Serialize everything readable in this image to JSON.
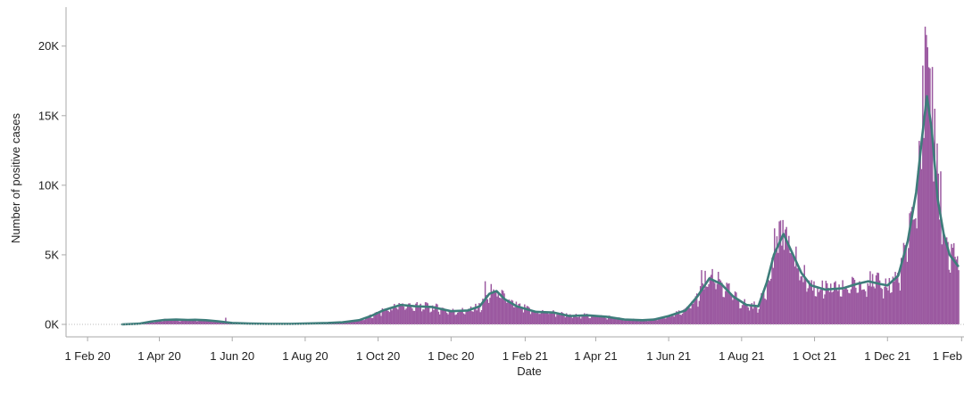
{
  "chart_data": {
    "type": "bar",
    "xlabel": "Date",
    "ylabel": "Number of positive cases",
    "x_range": [
      "2020-01-14",
      "2022-02-03"
    ],
    "ylim": [
      0,
      22800
    ],
    "y_ticks": [
      {
        "value": 0,
        "label": "0K"
      },
      {
        "value": 5000,
        "label": "5K"
      },
      {
        "value": 10000,
        "label": "10K"
      },
      {
        "value": 15000,
        "label": "15K"
      },
      {
        "value": 20000,
        "label": "20K"
      }
    ],
    "x_ticks": [
      {
        "date": "2020-02-01",
        "label": "1 Feb 20"
      },
      {
        "date": "2020-04-01",
        "label": "1 Apr 20"
      },
      {
        "date": "2020-06-01",
        "label": "1 Jun 20"
      },
      {
        "date": "2020-08-01",
        "label": "1 Aug 20"
      },
      {
        "date": "2020-10-01",
        "label": "1 Oct 20"
      },
      {
        "date": "2020-12-01",
        "label": "1 Dec 20"
      },
      {
        "date": "2021-02-01",
        "label": "1 Feb 21"
      },
      {
        "date": "2021-04-01",
        "label": "1 Apr 21"
      },
      {
        "date": "2021-06-01",
        "label": "1 Jun 21"
      },
      {
        "date": "2021-08-01",
        "label": "1 Aug 21"
      },
      {
        "date": "2021-10-01",
        "label": "1 Oct 21"
      },
      {
        "date": "2021-12-01",
        "label": "1 Dec 21"
      },
      {
        "date": "2022-02-01",
        "label": "1 Feb"
      }
    ],
    "grid": false,
    "legend": "none",
    "series": [
      {
        "kind": "daily-bars",
        "color": "#9b59a0",
        "start": "2020-03-01",
        "end": "2022-01-29",
        "points": [
          [
            "2020-03-01",
            0
          ],
          [
            "2020-03-15",
            50
          ],
          [
            "2020-03-25",
            200
          ],
          [
            "2020-04-05",
            320
          ],
          [
            "2020-04-15",
            350
          ],
          [
            "2020-04-25",
            320
          ],
          [
            "2020-05-01",
            330
          ],
          [
            "2020-05-10",
            300
          ],
          [
            "2020-05-20",
            220
          ],
          [
            "2020-06-01",
            100
          ],
          [
            "2020-06-15",
            60
          ],
          [
            "2020-07-01",
            40
          ],
          [
            "2020-07-20",
            40
          ],
          [
            "2020-08-01",
            60
          ],
          [
            "2020-08-20",
            100
          ],
          [
            "2020-09-01",
            150
          ],
          [
            "2020-09-15",
            300
          ],
          [
            "2020-09-25",
            600
          ],
          [
            "2020-10-05",
            1000
          ],
          [
            "2020-10-20",
            1400
          ],
          [
            "2020-11-01",
            1300
          ],
          [
            "2020-11-15",
            1250
          ],
          [
            "2020-12-01",
            950
          ],
          [
            "2020-12-15",
            1000
          ],
          [
            "2020-12-25",
            1300
          ],
          [
            "2021-01-02",
            2200
          ],
          [
            "2021-01-08",
            2400
          ],
          [
            "2021-01-15",
            1800
          ],
          [
            "2021-01-25",
            1300
          ],
          [
            "2021-02-10",
            900
          ],
          [
            "2021-02-25",
            850
          ],
          [
            "2021-03-10",
            600
          ],
          [
            "2021-03-25",
            650
          ],
          [
            "2021-04-10",
            550
          ],
          [
            "2021-04-25",
            350
          ],
          [
            "2021-05-10",
            300
          ],
          [
            "2021-05-20",
            350
          ],
          [
            "2021-06-01",
            600
          ],
          [
            "2021-06-15",
            1000
          ],
          [
            "2021-06-25",
            2000
          ],
          [
            "2021-07-05",
            3300
          ],
          [
            "2021-07-15",
            2900
          ],
          [
            "2021-07-25",
            2000
          ],
          [
            "2021-08-05",
            1400
          ],
          [
            "2021-08-15",
            1300
          ],
          [
            "2021-08-22",
            3000
          ],
          [
            "2021-08-28",
            5000
          ],
          [
            "2021-09-05",
            6500
          ],
          [
            "2021-09-12",
            5200
          ],
          [
            "2021-09-20",
            3700
          ],
          [
            "2021-09-28",
            2800
          ],
          [
            "2021-10-10",
            2500
          ],
          [
            "2021-10-25",
            2600
          ],
          [
            "2021-11-05",
            2900
          ],
          [
            "2021-11-15",
            3100
          ],
          [
            "2021-11-25",
            2900
          ],
          [
            "2021-12-01",
            2800
          ],
          [
            "2021-12-10",
            3500
          ],
          [
            "2021-12-18",
            6000
          ],
          [
            "2021-12-25",
            9500
          ],
          [
            "2021-12-30",
            13500
          ],
          [
            "2022-01-03",
            16400
          ],
          [
            "2022-01-07",
            14000
          ],
          [
            "2022-01-12",
            9000
          ],
          [
            "2022-01-17",
            6500
          ],
          [
            "2022-01-22",
            5000
          ],
          [
            "2022-01-29",
            4200
          ]
        ],
        "notes": [
          [
            "2020-05-26",
            480
          ],
          [
            "2020-12-29",
            3100
          ],
          [
            "2021-01-03",
            2900
          ],
          [
            "2021-06-28",
            3900
          ],
          [
            "2021-07-01",
            3850
          ],
          [
            "2021-08-28",
            6900
          ],
          [
            "2021-09-01",
            7400
          ],
          [
            "2021-09-04",
            7500
          ],
          [
            "2021-09-07",
            7000
          ],
          [
            "2021-12-30",
            18600
          ],
          [
            "2022-01-01",
            21400
          ],
          [
            "2022-01-02",
            20800
          ],
          [
            "2022-01-05",
            18400
          ],
          [
            "2022-01-07",
            18500
          ],
          [
            "2022-01-09",
            15500
          ],
          [
            "2022-01-11",
            13000
          ],
          [
            "2022-01-14",
            11000
          ],
          [
            "2022-01-28",
            4900
          ]
        ]
      },
      {
        "kind": "rolling-average-line",
        "color": "#3e7d7b",
        "points": [
          [
            "2020-03-01",
            0
          ],
          [
            "2020-03-15",
            50
          ],
          [
            "2020-03-25",
            200
          ],
          [
            "2020-04-05",
            320
          ],
          [
            "2020-04-15",
            350
          ],
          [
            "2020-04-25",
            320
          ],
          [
            "2020-05-01",
            330
          ],
          [
            "2020-05-10",
            300
          ],
          [
            "2020-05-20",
            220
          ],
          [
            "2020-06-01",
            100
          ],
          [
            "2020-06-15",
            60
          ],
          [
            "2020-07-01",
            40
          ],
          [
            "2020-07-20",
            40
          ],
          [
            "2020-08-01",
            60
          ],
          [
            "2020-08-20",
            100
          ],
          [
            "2020-09-01",
            150
          ],
          [
            "2020-09-15",
            300
          ],
          [
            "2020-09-25",
            600
          ],
          [
            "2020-10-05",
            1000
          ],
          [
            "2020-10-20",
            1400
          ],
          [
            "2020-11-01",
            1300
          ],
          [
            "2020-11-15",
            1250
          ],
          [
            "2020-12-01",
            950
          ],
          [
            "2020-12-15",
            1000
          ],
          [
            "2020-12-25",
            1300
          ],
          [
            "2021-01-02",
            2200
          ],
          [
            "2021-01-08",
            2400
          ],
          [
            "2021-01-15",
            1800
          ],
          [
            "2021-01-25",
            1300
          ],
          [
            "2021-02-10",
            900
          ],
          [
            "2021-02-25",
            850
          ],
          [
            "2021-03-10",
            600
          ],
          [
            "2021-03-25",
            650
          ],
          [
            "2021-04-10",
            550
          ],
          [
            "2021-04-25",
            350
          ],
          [
            "2021-05-10",
            300
          ],
          [
            "2021-05-20",
            350
          ],
          [
            "2021-06-01",
            600
          ],
          [
            "2021-06-15",
            1000
          ],
          [
            "2021-06-25",
            2000
          ],
          [
            "2021-07-05",
            3300
          ],
          [
            "2021-07-15",
            2900
          ],
          [
            "2021-07-25",
            2000
          ],
          [
            "2021-08-05",
            1400
          ],
          [
            "2021-08-15",
            1300
          ],
          [
            "2021-08-22",
            3000
          ],
          [
            "2021-08-28",
            5000
          ],
          [
            "2021-09-05",
            6500
          ],
          [
            "2021-09-12",
            5200
          ],
          [
            "2021-09-20",
            3700
          ],
          [
            "2021-09-28",
            2800
          ],
          [
            "2021-10-10",
            2500
          ],
          [
            "2021-10-25",
            2600
          ],
          [
            "2021-11-05",
            2900
          ],
          [
            "2021-11-15",
            3100
          ],
          [
            "2021-11-25",
            2900
          ],
          [
            "2021-12-01",
            2800
          ],
          [
            "2021-12-10",
            3500
          ],
          [
            "2021-12-18",
            6000
          ],
          [
            "2021-12-25",
            9500
          ],
          [
            "2021-12-30",
            13500
          ],
          [
            "2022-01-03",
            16400
          ],
          [
            "2022-01-07",
            14000
          ],
          [
            "2022-01-12",
            9000
          ],
          [
            "2022-01-17",
            6500
          ],
          [
            "2022-01-22",
            5000
          ],
          [
            "2022-01-29",
            4200
          ]
        ]
      }
    ]
  }
}
